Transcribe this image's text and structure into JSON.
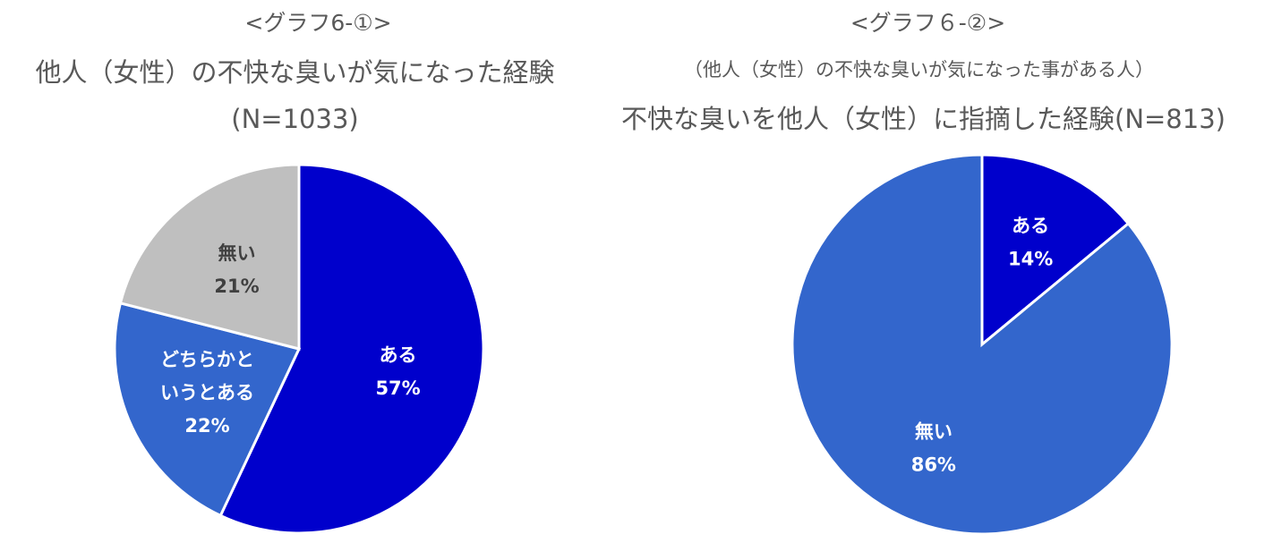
{
  "chart_data": [
    {
      "type": "pie",
      "tag": "<グラフ6-①>",
      "title": "他人（女性）の不快な臭いが気になった経験",
      "sample": "(N=1033)",
      "slices": [
        {
          "label_lines": [
            "ある"
          ],
          "value": 57,
          "value_label": "57%",
          "color": "#0000CC",
          "text_color": "#ffffff"
        },
        {
          "label_lines": [
            "どちらかと",
            "いうとある"
          ],
          "value": 22,
          "value_label": "22%",
          "color": "#3366CC",
          "text_color": "#ffffff"
        },
        {
          "label_lines": [
            "無い"
          ],
          "value": 21,
          "value_label": "21%",
          "color": "#BFBFBF",
          "text_color": "#404040"
        }
      ]
    },
    {
      "type": "pie",
      "tag": "<グラフ６-②>",
      "subtitle": "（他人（女性）の不快な臭いが気になった事がある人）",
      "title": "不快な臭いを他人（女性）に指摘した経験(N=813)",
      "slices": [
        {
          "label_lines": [
            "ある"
          ],
          "value": 14,
          "value_label": "14%",
          "color": "#0000CC",
          "text_color": "#ffffff"
        },
        {
          "label_lines": [
            "無い"
          ],
          "value": 86,
          "value_label": "86%",
          "color": "#3366CC",
          "text_color": "#ffffff"
        }
      ]
    }
  ]
}
